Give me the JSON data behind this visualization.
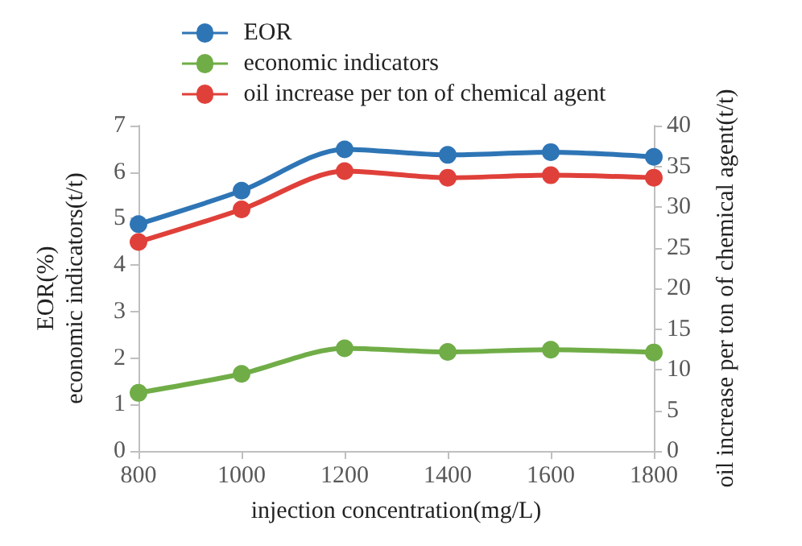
{
  "chart_data": {
    "type": "line",
    "xlabel": "injection concentration(mg/L)",
    "ylabel": "EOR(%)\neconomic indicators(t/t)",
    "y2label": "oil increase per ton of chemical agent(t/t)",
    "x": [
      800,
      1000,
      1200,
      1400,
      1600,
      1800
    ],
    "series": [
      {
        "name": "EOR",
        "color": "#2e75b6",
        "values": [
          4.88,
          5.6,
          6.49,
          6.37,
          6.43,
          6.33
        ]
      },
      {
        "name": "economic indicators",
        "color": "#70ad47",
        "values": [
          1.25,
          1.66,
          2.21,
          2.13,
          2.18,
          2.12
        ]
      },
      {
        "name": "oil increase per ton of chemical agent",
        "color": "#e0403a",
        "axis": "y2",
        "values": [
          25.7,
          29.7,
          34.4,
          33.6,
          33.9,
          33.6
        ]
      }
    ],
    "xlim": [
      800,
      1800
    ],
    "xticks": [
      800,
      1000,
      1200,
      1400,
      1600,
      1800
    ],
    "ylim": [
      0,
      7
    ],
    "yticks": [
      0,
      1,
      2,
      3,
      4,
      5,
      6,
      7
    ],
    "y2lim": [
      0,
      40
    ],
    "y2ticks": [
      0,
      5,
      10,
      15,
      20,
      25,
      30,
      35,
      40
    ],
    "grid": false,
    "legend": "top left",
    "marker": "circle",
    "line_style": "solid"
  }
}
